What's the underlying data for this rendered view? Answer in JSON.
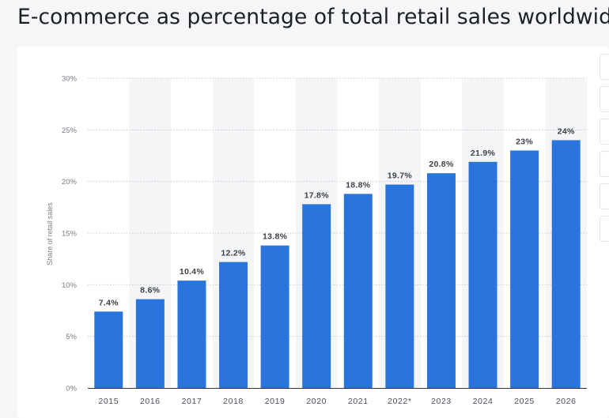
{
  "page": {
    "title": "E-commerce as percentage of total retail sales worldwide"
  },
  "toolbar": {
    "icons": [
      "statistic-tool-icon",
      "statistic-tool-icon",
      "statistic-tool-icon",
      "statistic-tool-icon",
      "statistic-tool-icon",
      "statistic-tool-icon"
    ]
  },
  "chart_data": {
    "type": "bar",
    "categories": [
      "2015",
      "2016",
      "2017",
      "2018",
      "2019",
      "2020",
      "2021",
      "2022*",
      "2023",
      "2024",
      "2025",
      "2026"
    ],
    "values": [
      7.4,
      8.6,
      10.4,
      12.2,
      13.8,
      17.8,
      18.8,
      19.7,
      20.8,
      21.9,
      23,
      24
    ],
    "data_labels": [
      "7.4%",
      "8.6%",
      "10.4%",
      "12.2%",
      "13.8%",
      "17.8%",
      "18.8%",
      "19.7%",
      "20.8%",
      "21.9%",
      "23%",
      "24%"
    ],
    "ylabel": "Share of retail sales",
    "xlabel": "",
    "ylim": [
      0,
      30
    ],
    "yticks": [
      0,
      5,
      10,
      15,
      20,
      25,
      30
    ],
    "ytick_labels": [
      "0%",
      "5%",
      "10%",
      "15%",
      "20%",
      "25%",
      "30%"
    ],
    "grid": true,
    "colors": {
      "bar": "#2a74dd",
      "band": "#f4f5f7",
      "grid": "#c7cbd1",
      "axis": "#333333"
    }
  }
}
